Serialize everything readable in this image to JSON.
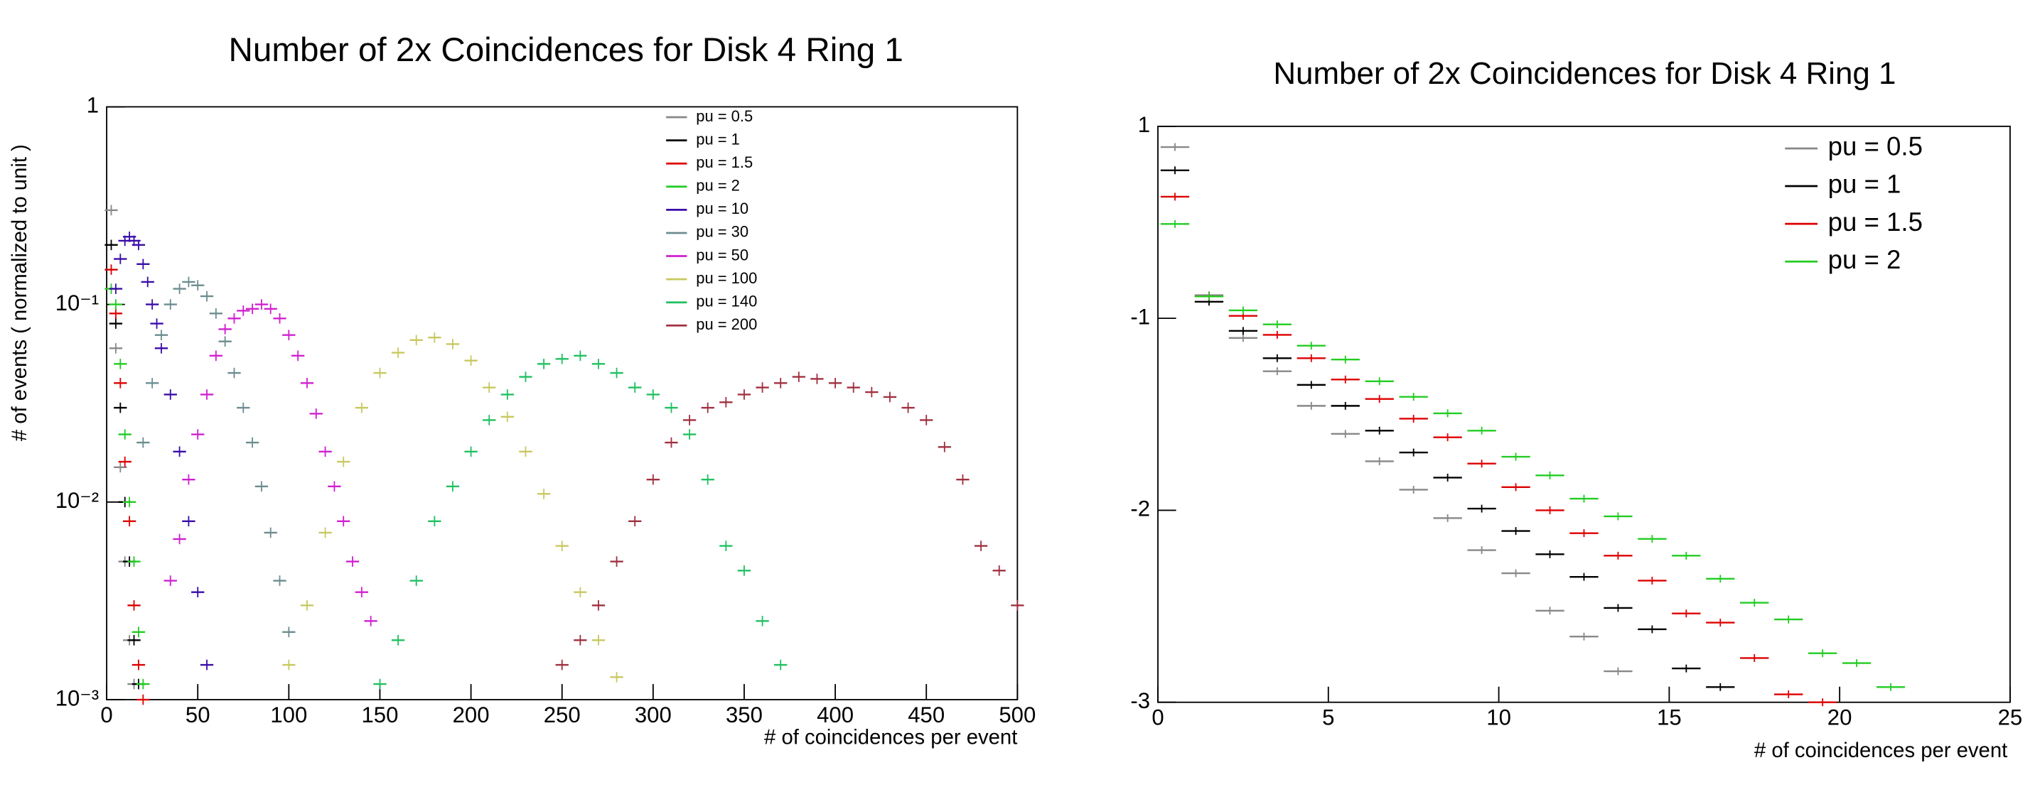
{
  "chart_data": [
    {
      "type": "scatter",
      "title": "Number of 2x Coincidences for Disk 4 Ring 1",
      "xlabel": "# of coincidences per event",
      "ylabel": "# of events ( normalized to unit )",
      "xlim": [
        0,
        500
      ],
      "xticks": [
        0,
        50,
        100,
        150,
        200,
        250,
        300,
        350,
        400,
        450,
        500
      ],
      "ylim": [
        0.001,
        1
      ],
      "yticks": [
        {
          "value": 0.001,
          "label": "10⁻³"
        },
        {
          "value": 0.01,
          "label": "10⁻²"
        },
        {
          "value": 0.1,
          "label": "10⁻¹"
        },
        1
      ],
      "log_y": true,
      "legend": "upper right",
      "series": [
        {
          "name": "pu = 0.5",
          "color": "#888888",
          "x": [
            2.5,
            5,
            7.5,
            10,
            12.5,
            15
          ],
          "values": [
            0.3,
            0.06,
            0.015,
            0.005,
            0.002,
            0.0012
          ]
        },
        {
          "name": "pu = 1",
          "color": "#000000",
          "x": [
            2.5,
            5,
            7.5,
            10,
            12.5,
            15,
            17.5
          ],
          "values": [
            0.2,
            0.08,
            0.03,
            0.01,
            0.005,
            0.002,
            0.0012
          ]
        },
        {
          "name": "pu = 1.5",
          "color": "#dd0000",
          "x": [
            2.5,
            5,
            7.5,
            10,
            12.5,
            15,
            17.5,
            20
          ],
          "values": [
            0.15,
            0.09,
            0.04,
            0.016,
            0.008,
            0.003,
            0.0015,
            0.001
          ]
        },
        {
          "name": "pu = 2",
          "color": "#22cc22",
          "x": [
            2.5,
            5,
            7.5,
            10,
            12.5,
            15,
            17.5,
            20
          ],
          "values": [
            0.12,
            0.1,
            0.05,
            0.022,
            0.01,
            0.005,
            0.0022,
            0.0012
          ]
        },
        {
          "name": "pu = 10",
          "color": "#3a0ca8",
          "x": [
            5,
            7.5,
            10,
            12.5,
            15,
            17.5,
            20,
            22.5,
            25,
            27.5,
            30,
            35,
            40,
            45,
            50,
            55
          ],
          "values": [
            0.12,
            0.17,
            0.21,
            0.22,
            0.21,
            0.2,
            0.16,
            0.13,
            0.1,
            0.08,
            0.06,
            0.035,
            0.018,
            0.008,
            0.0035,
            0.0015
          ]
        },
        {
          "name": "pu = 30",
          "color": "#6c8c90",
          "x": [
            20,
            25,
            30,
            35,
            40,
            45,
            50,
            55,
            60,
            65,
            70,
            75,
            80,
            85,
            90,
            95,
            100
          ],
          "values": [
            0.02,
            0.04,
            0.07,
            0.1,
            0.12,
            0.13,
            0.125,
            0.11,
            0.09,
            0.065,
            0.045,
            0.03,
            0.02,
            0.012,
            0.007,
            0.004,
            0.0022
          ]
        },
        {
          "name": "pu = 50",
          "color": "#d020d0",
          "x": [
            35,
            40,
            45,
            50,
            55,
            60,
            65,
            70,
            75,
            80,
            85,
            90,
            95,
            100,
            105,
            110,
            115,
            120,
            125,
            130,
            135,
            140,
            145
          ],
          "values": [
            0.004,
            0.0065,
            0.013,
            0.022,
            0.035,
            0.055,
            0.075,
            0.085,
            0.093,
            0.095,
            0.1,
            0.095,
            0.085,
            0.07,
            0.055,
            0.04,
            0.028,
            0.018,
            0.012,
            0.008,
            0.005,
            0.0035,
            0.0025
          ]
        },
        {
          "name": "pu = 100",
          "color": "#c8c860",
          "x": [
            100,
            110,
            120,
            130,
            140,
            150,
            160,
            170,
            180,
            190,
            200,
            210,
            220,
            230,
            240,
            250,
            260,
            270,
            280
          ],
          "values": [
            0.0015,
            0.003,
            0.007,
            0.016,
            0.03,
            0.045,
            0.057,
            0.066,
            0.068,
            0.063,
            0.052,
            0.038,
            0.027,
            0.018,
            0.011,
            0.006,
            0.0035,
            0.002,
            0.0013
          ]
        },
        {
          "name": "pu = 140",
          "color": "#20c060",
          "x": [
            150,
            160,
            170,
            180,
            190,
            200,
            210,
            220,
            230,
            240,
            250,
            260,
            270,
            280,
            290,
            300,
            310,
            320,
            330,
            340,
            350,
            360,
            370
          ],
          "values": [
            0.0012,
            0.002,
            0.004,
            0.008,
            0.012,
            0.018,
            0.026,
            0.035,
            0.043,
            0.05,
            0.053,
            0.055,
            0.05,
            0.045,
            0.038,
            0.035,
            0.03,
            0.022,
            0.013,
            0.006,
            0.0045,
            0.0025,
            0.0015
          ]
        },
        {
          "name": "pu = 200",
          "color": "#a03040",
          "x": [
            250,
            260,
            270,
            280,
            290,
            300,
            310,
            320,
            330,
            340,
            350,
            360,
            370,
            380,
            390,
            400,
            410,
            420,
            430,
            440,
            450,
            460,
            470,
            480,
            490,
            500
          ],
          "values": [
            0.0015,
            0.002,
            0.003,
            0.005,
            0.008,
            0.013,
            0.02,
            0.026,
            0.03,
            0.032,
            0.035,
            0.038,
            0.04,
            0.043,
            0.042,
            0.04,
            0.038,
            0.036,
            0.034,
            0.03,
            0.026,
            0.019,
            0.013,
            0.006,
            0.0045,
            0.003
          ]
        }
      ]
    },
    {
      "type": "scatter",
      "title": "Number of 2x Coincidences for Disk 4 Ring 1",
      "xlabel": "# of coincidences per event",
      "xlim": [
        0,
        25
      ],
      "xticks": [
        0,
        5,
        10,
        15,
        20,
        25
      ],
      "ylim": [
        0.001,
        1
      ],
      "yticks": [
        {
          "value": 0.001,
          "label": "-3"
        },
        {
          "value": 0.01,
          "label": "-2"
        },
        {
          "value": 0.1,
          "label": "-1"
        },
        1
      ],
      "log_y": true,
      "legend": "upper right",
      "series": [
        {
          "name": "pu = 0.5",
          "color": "#888888",
          "x": [
            0.5,
            1.5,
            2.5,
            3.5,
            4.5,
            5.5,
            6.5,
            7.5,
            8.5,
            9.5,
            10.5,
            11.5,
            12.5,
            13.5
          ],
          "values": [
            0.78,
            0.132,
            0.079,
            0.053,
            0.035,
            0.025,
            0.018,
            0.0128,
            0.0091,
            0.0062,
            0.0047,
            0.003,
            0.0022,
            0.00145
          ]
        },
        {
          "name": "pu = 1",
          "color": "#000000",
          "x": [
            0.5,
            1.5,
            2.5,
            3.5,
            4.5,
            5.5,
            6.5,
            7.5,
            8.5,
            9.5,
            10.5,
            11.5,
            12.5,
            13.5,
            14.5,
            15.5,
            16.5
          ],
          "values": [
            0.59,
            0.122,
            0.086,
            0.062,
            0.045,
            0.035,
            0.026,
            0.02,
            0.0148,
            0.0102,
            0.0078,
            0.0059,
            0.0045,
            0.0031,
            0.0024,
            0.0015,
            0.0012
          ]
        },
        {
          "name": "pu = 1.5",
          "color": "#dd0000",
          "x": [
            0.5,
            1.5,
            2.5,
            3.5,
            4.5,
            5.5,
            6.5,
            7.5,
            8.5,
            9.5,
            10.5,
            11.5,
            12.5,
            13.5,
            14.5,
            15.5,
            16.5,
            17.5,
            18.5,
            19.5
          ],
          "values": [
            0.43,
            0.13,
            0.103,
            0.082,
            0.062,
            0.048,
            0.038,
            0.03,
            0.024,
            0.0175,
            0.0132,
            0.01,
            0.0076,
            0.0058,
            0.0043,
            0.0029,
            0.0026,
            0.0017,
            0.0011,
            0.001
          ]
        },
        {
          "name": "pu = 2",
          "color": "#22cc22",
          "x": [
            0.5,
            1.5,
            2.5,
            3.5,
            4.5,
            5.5,
            6.5,
            7.5,
            8.5,
            9.5,
            10.5,
            11.5,
            12.5,
            13.5,
            14.5,
            15.5,
            16.5,
            17.5,
            18.5,
            19.5,
            20.5,
            21.5
          ],
          "values": [
            0.31,
            0.13,
            0.11,
            0.093,
            0.072,
            0.061,
            0.047,
            0.039,
            0.032,
            0.026,
            0.019,
            0.0152,
            0.0115,
            0.0093,
            0.0071,
            0.0058,
            0.0044,
            0.0033,
            0.0027,
            0.0018,
            0.0016,
            0.0012
          ]
        }
      ]
    }
  ]
}
